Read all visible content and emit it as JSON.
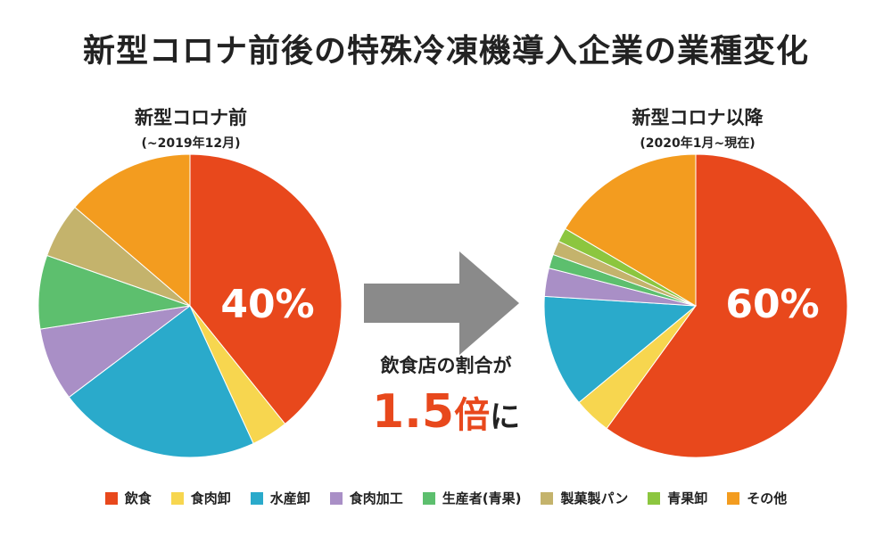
{
  "title": "新型コロナ前後の特殊冷凍機導入企業の業種変化",
  "chart_data": [
    {
      "type": "pie",
      "id": "before",
      "title": "新型コロナ前",
      "subtitle": "(~2019年12月)",
      "highlight_label": "40%",
      "categories": [
        "飲食",
        "食肉卸",
        "水産卸",
        "食肉加工",
        "生産者(青果)",
        "製菓製パン",
        "青果卸",
        "その他"
      ],
      "values": [
        40,
        4,
        22,
        8,
        8,
        6,
        0,
        14
      ]
    },
    {
      "type": "pie",
      "id": "after",
      "title": "新型コロナ以降",
      "subtitle": "(2020年1月~現在)",
      "highlight_label": "60%",
      "categories": [
        "飲食",
        "食肉卸",
        "水産卸",
        "食肉加工",
        "生産者(青果)",
        "製菓製パン",
        "青果卸",
        "その他"
      ],
      "values": [
        60,
        4,
        12,
        3,
        1.5,
        1.5,
        1.5,
        16.5
      ]
    }
  ],
  "colors": [
    "#e8481c",
    "#f7d64f",
    "#2aaacb",
    "#a98fc6",
    "#5dbf6e",
    "#c4b36c",
    "#8cc63f",
    "#f39c1f"
  ],
  "middle": {
    "caption": "飲食店の割合が",
    "big_number": "1.5",
    "big_unit": "倍",
    "big_suffix": "に"
  },
  "legend": [
    {
      "label": "飲食",
      "color": "#e8481c"
    },
    {
      "label": "食肉卸",
      "color": "#f7d64f"
    },
    {
      "label": "水産卸",
      "color": "#2aaacb"
    },
    {
      "label": "食肉加工",
      "color": "#a98fc6"
    },
    {
      "label": "生産者(青果)",
      "color": "#5dbf6e"
    },
    {
      "label": "製菓製パン",
      "color": "#c4b36c"
    },
    {
      "label": "青果卸",
      "color": "#8cc63f"
    },
    {
      "label": "その他",
      "color": "#f39c1f"
    }
  ]
}
